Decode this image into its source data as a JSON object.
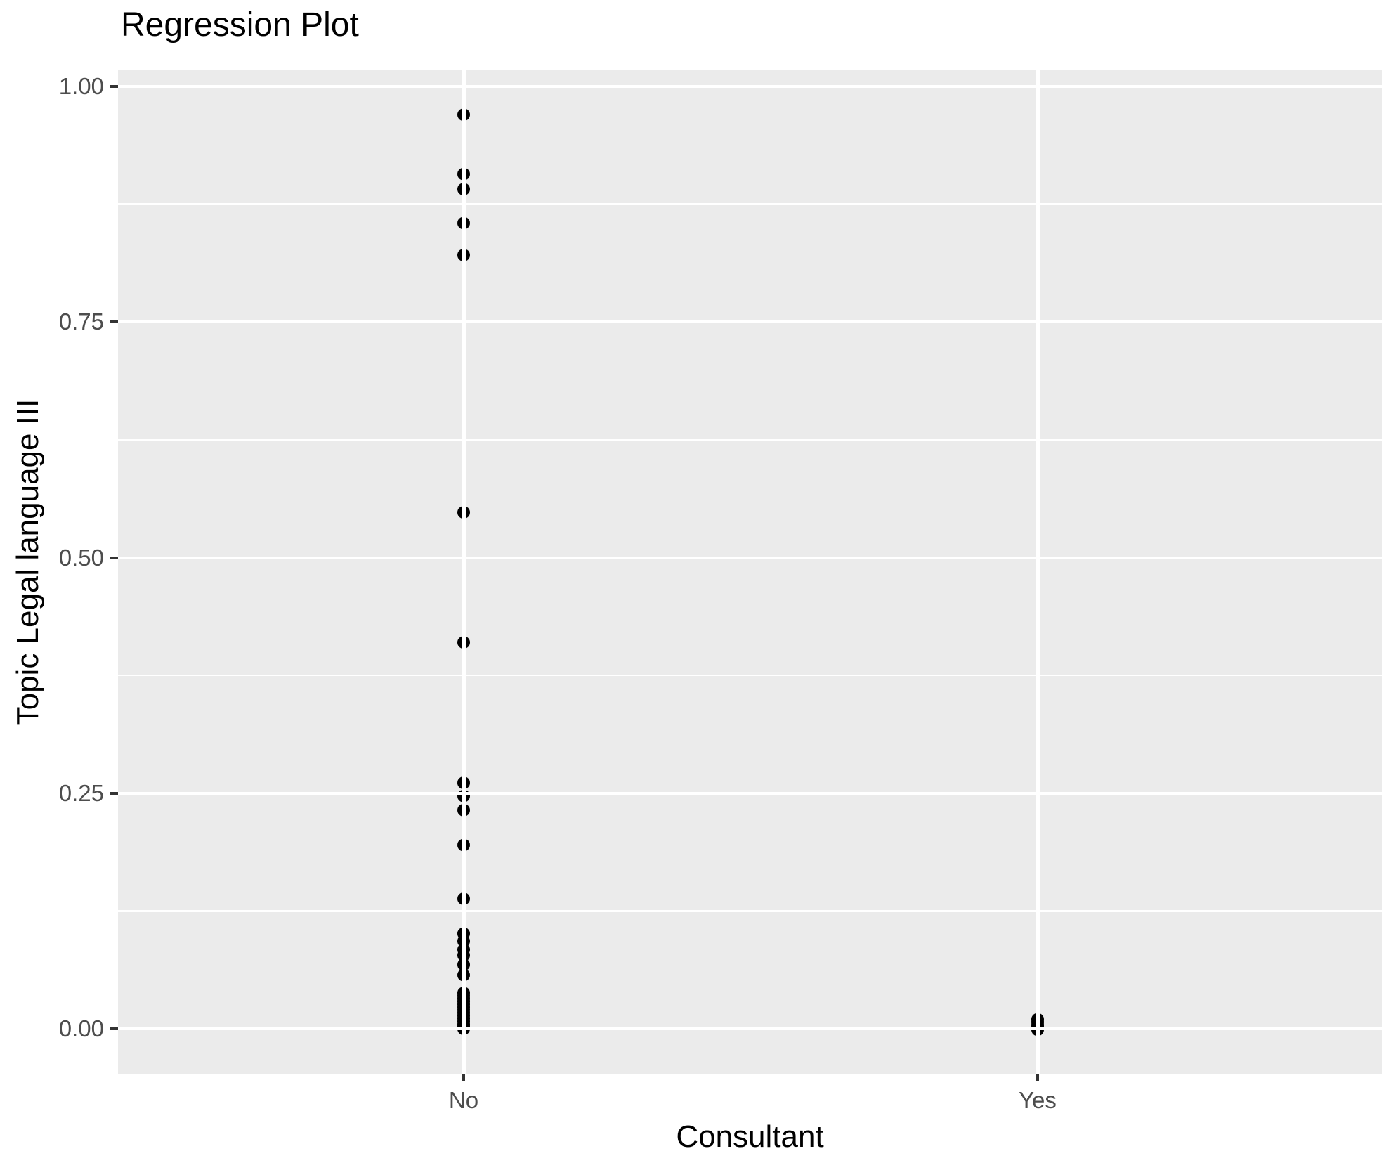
{
  "chart_data": {
    "type": "scatter",
    "title": "Regression Plot",
    "xlabel": "Consultant",
    "ylabel": "Topic Legal language III",
    "categories": [
      "No",
      "Yes"
    ],
    "y_ticks": [
      {
        "value": 0.0,
        "label": "0.00"
      },
      {
        "value": 0.25,
        "label": "0.25"
      },
      {
        "value": 0.5,
        "label": "0.50"
      },
      {
        "value": 0.75,
        "label": "0.75"
      },
      {
        "value": 1.0,
        "label": "1.00"
      }
    ],
    "y_minor_ticks": [
      0.125,
      0.375,
      0.625,
      0.875
    ],
    "ylim": [
      -0.054,
      1.019
    ],
    "grid": "white major and minor horizontal lines plus vertical category lines on grey panel",
    "legend": "none",
    "series": [
      {
        "name": "No",
        "values": [
          0.97,
          0.907,
          0.891,
          0.855,
          0.821,
          0.548,
          0.41,
          0.261,
          0.247,
          0.232,
          0.195,
          0.138,
          0.101,
          0.093,
          0.084,
          0.078,
          0.068,
          0.057,
          0.038,
          0.035,
          0.032,
          0.029,
          0.026,
          0.023,
          0.02,
          0.017,
          0.014,
          0.011,
          0.008,
          0.005,
          0.003,
          0.001,
          0.0
        ]
      },
      {
        "name": "Yes",
        "values": [
          0.01,
          0.007,
          0.004,
          0.002,
          0.0,
          -0.001
        ]
      }
    ],
    "colors": {
      "panel_bg": "#EBEBEB",
      "grid": "#FFFFFF",
      "point": "#000000",
      "tick_label": "#4D4D4D",
      "tick_mark": "#333333",
      "title": "#000000"
    }
  }
}
